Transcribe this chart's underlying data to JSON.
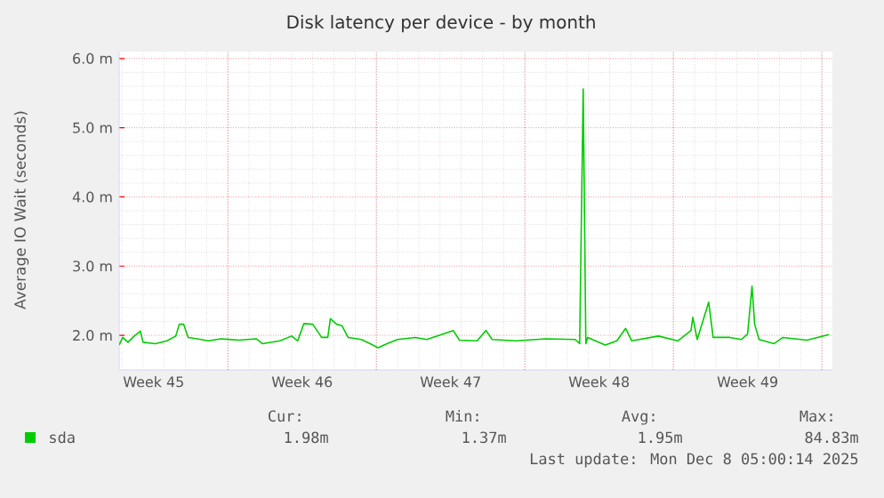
{
  "chart_data": {
    "type": "line",
    "title": "Disk latency per device - by month",
    "ylabel": "Average IO Wait (seconds)",
    "x": [
      "2025-11-04T21:00",
      "2025-11-05T01:00",
      "2025-11-05T07:00",
      "2025-11-05T14:00",
      "2025-11-05T21:00",
      "2025-11-06T00:00",
      "2025-11-06T14:00",
      "2025-11-07T03:00",
      "2025-11-07T13:00",
      "2025-11-07T17:00",
      "2025-11-07T22:00",
      "2025-11-08T03:00",
      "2025-11-08T13:00",
      "2025-11-09T02:00",
      "2025-11-09T16:00",
      "2025-11-10T12:00",
      "2025-11-11T08:00",
      "2025-11-11T15:00",
      "2025-11-12T11:00",
      "2025-11-13T00:00",
      "2025-11-13T07:00",
      "2025-11-13T14:00",
      "2025-11-14T00:00",
      "2025-11-14T10:00",
      "2025-11-14T17:00",
      "2025-11-14T20:00",
      "2025-11-15T03:00",
      "2025-11-15T09:00",
      "2025-11-15T16:00",
      "2025-11-16T07:00",
      "2025-11-16T17:00",
      "2025-11-17T02:00",
      "2025-11-17T12:00",
      "2025-11-18T00:00",
      "2025-11-18T20:00",
      "2025-11-19T09:00",
      "2025-11-20T15:00",
      "2025-11-20T22:00",
      "2025-11-21T18:00",
      "2025-11-22T04:00",
      "2025-11-22T11:00",
      "2025-11-23T14:00",
      "2025-11-25T00:00",
      "2025-11-26T09:00",
      "2025-11-26T14:00",
      "2025-11-26T18:00",
      "2025-11-26T21:00",
      "2025-11-26T23:00",
      "2025-11-27T19:00",
      "2025-11-28T08:00",
      "2025-11-28T18:00",
      "2025-11-29T01:00",
      "2025-11-30T07:00",
      "2025-12-01T05:00",
      "2025-12-01T20:00",
      "2025-12-01T22:00",
      "2025-12-02T03:00",
      "2025-12-02T16:00",
      "2025-12-02T21:00",
      "2025-12-03T16:00",
      "2025-12-04T05:00",
      "2025-12-04T12:00",
      "2025-12-04T17:00",
      "2025-12-04T20:00",
      "2025-12-05T01:00",
      "2025-12-05T18:00",
      "2025-12-06T04:00",
      "2025-12-07T07:00",
      "2025-12-08T08:00"
    ],
    "series": [
      {
        "name": "sda",
        "color": "#00cc00",
        "values": [
          1.86,
          1.97,
          1.9,
          1.99,
          2.06,
          1.9,
          1.88,
          1.92,
          1.99,
          2.16,
          2.16,
          1.97,
          1.95,
          1.92,
          1.95,
          1.93,
          1.95,
          1.88,
          1.92,
          1.99,
          1.92,
          2.17,
          2.16,
          1.97,
          1.97,
          2.24,
          2.16,
          2.14,
          1.97,
          1.94,
          1.88,
          1.82,
          1.88,
          1.94,
          1.97,
          1.94,
          2.07,
          1.93,
          1.92,
          2.07,
          1.94,
          1.92,
          1.95,
          1.94,
          1.88,
          5.56,
          1.88,
          1.97,
          1.86,
          1.92,
          2.1,
          1.92,
          1.99,
          1.92,
          2.07,
          2.26,
          1.94,
          2.48,
          1.97,
          1.97,
          1.94,
          2.02,
          2.71,
          2.16,
          1.94,
          1.88,
          1.97,
          1.93,
          2.01
        ]
      }
    ],
    "xlim": [
      "2025-11-04T21:00",
      "2025-12-08T12:00"
    ],
    "ylim": [
      1.5,
      6.1
    ],
    "xticks": [
      {
        "value": "2025-11-06T12:00",
        "label": "Week 45"
      },
      {
        "value": "2025-11-10",
        "label": null
      },
      {
        "value": "2025-11-13T12:00",
        "label": "Week 46"
      },
      {
        "value": "2025-11-17",
        "label": null
      },
      {
        "value": "2025-11-20T12:00",
        "label": "Week 47"
      },
      {
        "value": "2025-11-24",
        "label": null
      },
      {
        "value": "2025-11-27T12:00",
        "label": "Week 48"
      },
      {
        "value": "2025-12-01",
        "label": null
      },
      {
        "value": "2025-12-04T12:00",
        "label": "Week 49"
      },
      {
        "value": "2025-12-08",
        "label": null
      }
    ],
    "yticks": [
      {
        "value": 2,
        "label": "2.0 m"
      },
      {
        "value": 3,
        "label": "3.0 m"
      },
      {
        "value": 4,
        "label": "4.0 m"
      },
      {
        "value": 5,
        "label": "5.0 m"
      },
      {
        "value": 6,
        "label": "6.0 m"
      }
    ],
    "grid": true,
    "legend": "bottom left",
    "marker": "none",
    "line_style": "solid",
    "annotations": [
      "Cur:",
      "Min:",
      "Avg:",
      "Max:",
      "1.98m",
      "1.37m",
      "1.95m",
      "84.83m",
      "Last update:  Mon Dec  8 05:00:14 2025"
    ]
  }
}
